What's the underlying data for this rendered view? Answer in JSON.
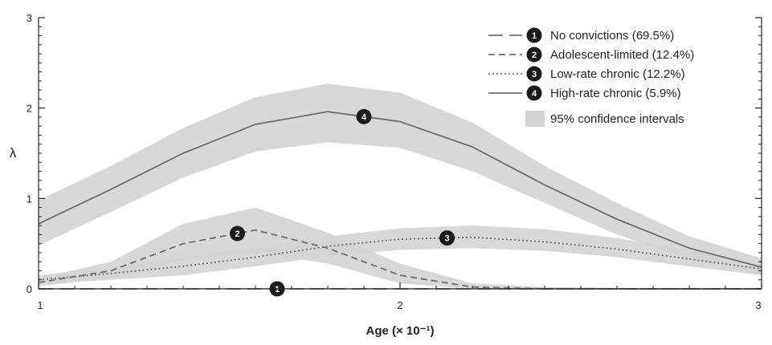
{
  "chart_data": {
    "type": "line",
    "xlabel": "Age (× 10⁻¹)",
    "ylabel": "λ",
    "xlim": [
      1,
      3
    ],
    "ylim": [
      0,
      3
    ],
    "x_ticks": [
      1,
      2,
      3
    ],
    "y_ticks": [
      0,
      1,
      2,
      3
    ],
    "grid": false,
    "legend_position": "top-right",
    "x": [
      1.0,
      1.2,
      1.4,
      1.6,
      1.8,
      2.0,
      2.2,
      2.4,
      2.6,
      2.8,
      3.0
    ],
    "series": [
      {
        "name": "No convictions (69.5%)",
        "marker": "1",
        "style": "long-dash",
        "values": [
          0.0,
          0.0,
          0.0,
          0.0,
          0.0,
          0.0,
          0.0,
          0.0,
          0.0,
          0.0,
          0.0
        ],
        "ci_lower": [
          0.0,
          0.0,
          0.0,
          0.0,
          0.0,
          0.0,
          0.0,
          0.0,
          0.0,
          0.0,
          0.0
        ],
        "ci_upper": [
          0.01,
          0.01,
          0.01,
          0.01,
          0.01,
          0.01,
          0.01,
          0.01,
          0.01,
          0.01,
          0.01
        ]
      },
      {
        "name": "Adolescent-limited (12.4%)",
        "marker": "2",
        "style": "dash",
        "values": [
          0.07,
          0.2,
          0.5,
          0.65,
          0.45,
          0.15,
          0.02,
          0.0,
          0.0,
          0.0,
          0.0
        ],
        "ci_lower": [
          0.03,
          0.12,
          0.32,
          0.4,
          0.28,
          0.06,
          0.0,
          0.0,
          0.0,
          0.0,
          0.0
        ],
        "ci_upper": [
          0.12,
          0.3,
          0.72,
          0.9,
          0.62,
          0.28,
          0.06,
          0.02,
          0.01,
          0.01,
          0.01
        ]
      },
      {
        "name": "Low-rate chronic (12.2%)",
        "marker": "3",
        "style": "dot",
        "values": [
          0.1,
          0.17,
          0.25,
          0.35,
          0.47,
          0.55,
          0.57,
          0.52,
          0.44,
          0.33,
          0.22
        ],
        "ci_lower": [
          0.05,
          0.1,
          0.15,
          0.25,
          0.36,
          0.43,
          0.45,
          0.42,
          0.35,
          0.25,
          0.15
        ],
        "ci_upper": [
          0.15,
          0.24,
          0.35,
          0.46,
          0.58,
          0.67,
          0.7,
          0.66,
          0.56,
          0.43,
          0.3
        ]
      },
      {
        "name": "High-rate chronic (5.9%)",
        "marker": "4",
        "style": "solid",
        "values": [
          0.72,
          1.1,
          1.5,
          1.82,
          1.96,
          1.85,
          1.57,
          1.15,
          0.77,
          0.45,
          0.24
        ],
        "ci_lower": [
          0.48,
          0.85,
          1.23,
          1.52,
          1.62,
          1.56,
          1.3,
          0.95,
          0.6,
          0.33,
          0.15
        ],
        "ci_upper": [
          0.98,
          1.36,
          1.78,
          2.12,
          2.27,
          2.17,
          1.84,
          1.36,
          0.95,
          0.58,
          0.34
        ]
      }
    ],
    "legend_extra": "95% confidence intervals",
    "colors": {
      "band": "#d3d3d3",
      "line": "#6e6e6e",
      "marker": "#1a1a1a",
      "axis": "#222222"
    }
  }
}
